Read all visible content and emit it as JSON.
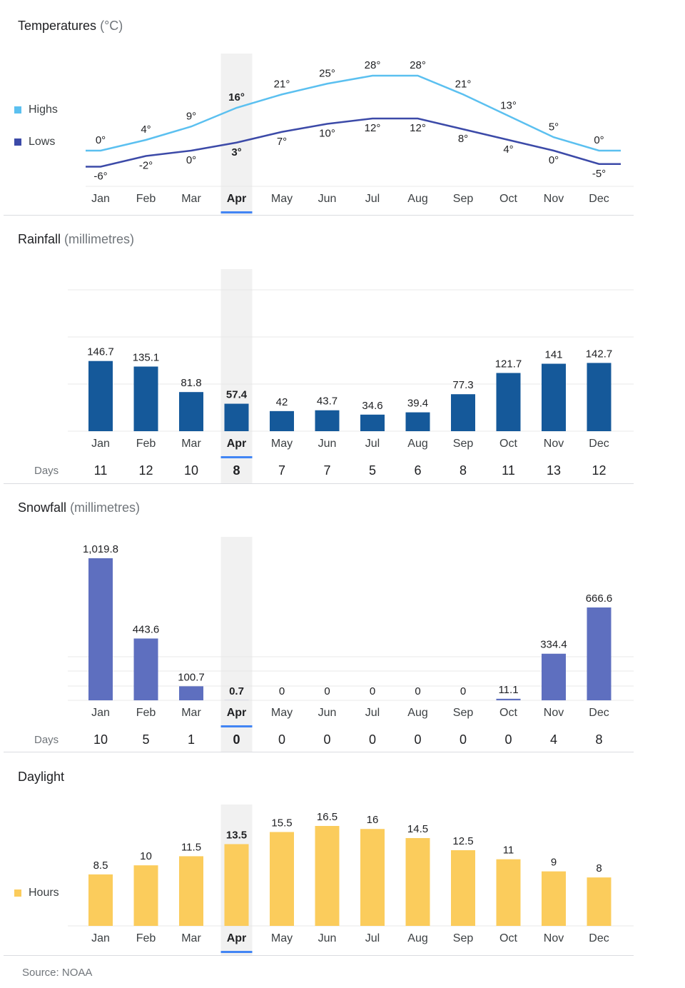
{
  "months": [
    "Jan",
    "Feb",
    "Mar",
    "Apr",
    "May",
    "Jun",
    "Jul",
    "Aug",
    "Sep",
    "Oct",
    "Nov",
    "Dec"
  ],
  "selected_month": "Apr",
  "days_label": "Days",
  "source": "Source: NOAA",
  "colors": {
    "highs": "#5bc0f0",
    "lows": "#3c4aa8",
    "rain": "#15599a",
    "snow": "#5e6fbf",
    "daylight": "#fbcc5c",
    "selected": "#4285f4"
  },
  "chart_data": [
    {
      "type": "line",
      "title": "Temperatures",
      "unit": "(°C)",
      "series": [
        {
          "name": "Highs",
          "values": [
            0,
            4,
            9,
            16,
            21,
            25,
            28,
            28,
            21,
            13,
            5,
            0
          ],
          "labels": [
            "0°",
            "4°",
            "9°",
            "16°",
            "21°",
            "25°",
            "28°",
            "28°",
            "21°",
            "13°",
            "5°",
            "0°"
          ]
        },
        {
          "name": "Lows",
          "values": [
            -6,
            -2,
            0,
            3,
            7,
            10,
            12,
            12,
            8,
            4,
            0,
            -5
          ],
          "labels": [
            "-6°",
            "-2°",
            "0°",
            "3°",
            "7°",
            "10°",
            "12°",
            "12°",
            "8°",
            "4°",
            "0°",
            "-5°"
          ]
        }
      ]
    },
    {
      "type": "bar",
      "title": "Rainfall",
      "unit": "(millimetres)",
      "values": [
        146.7,
        135.1,
        81.8,
        57.4,
        42,
        43.7,
        34.6,
        39.4,
        77.3,
        121.7,
        141,
        142.7
      ],
      "labels": [
        "146.7",
        "135.1",
        "81.8",
        "57.4",
        "42",
        "43.7",
        "34.6",
        "39.4",
        "77.3",
        "121.7",
        "141",
        "142.7"
      ],
      "days": [
        "11",
        "12",
        "10",
        "8",
        "7",
        "7",
        "5",
        "6",
        "8",
        "11",
        "13",
        "12"
      ],
      "ylim": [
        0,
        300
      ]
    },
    {
      "type": "bar",
      "title": "Snowfall",
      "unit": "(millimetres)",
      "values": [
        1019.8,
        443.6,
        100.7,
        0.7,
        0,
        0,
        0,
        0,
        0,
        11.1,
        334.4,
        666.6
      ],
      "labels": [
        "1,019.8",
        "443.6",
        "100.7",
        "0.7",
        "0",
        "0",
        "0",
        "0",
        "0",
        "11.1",
        "334.4",
        "666.6"
      ],
      "days": [
        "10",
        "5",
        "1",
        "0",
        "0",
        "0",
        "0",
        "0",
        "0",
        "0",
        "4",
        "8"
      ],
      "ylim": [
        0,
        1019.8
      ]
    },
    {
      "type": "bar",
      "title": "Daylight",
      "unit": "",
      "legend": "Hours",
      "values": [
        8.5,
        10,
        11.5,
        13.5,
        15.5,
        16.5,
        16,
        14.5,
        12.5,
        11,
        9,
        8
      ],
      "labels": [
        "8.5",
        "10",
        "11.5",
        "13.5",
        "15.5",
        "16.5",
        "16",
        "14.5",
        "12.5",
        "11",
        "9",
        "8"
      ],
      "ylim": [
        0,
        16.5
      ]
    }
  ]
}
